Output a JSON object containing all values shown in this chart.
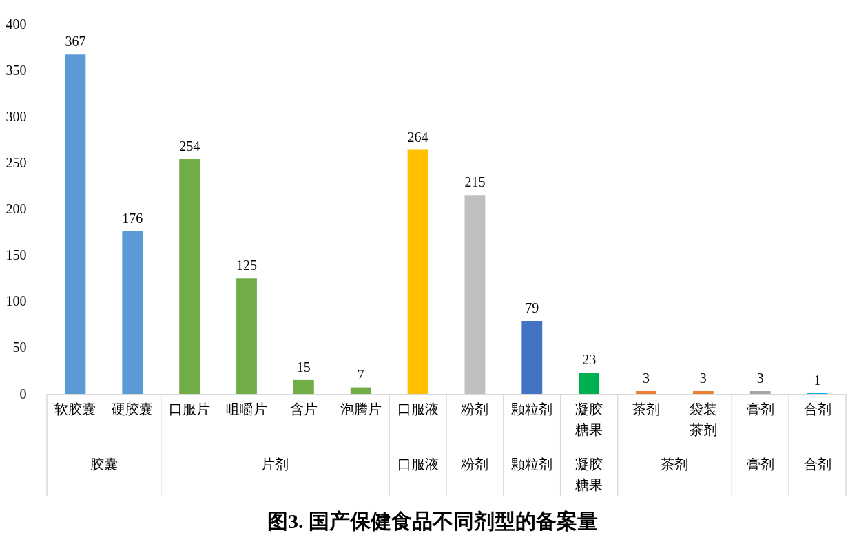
{
  "chart_data": {
    "type": "bar",
    "title": "图3. 国产保健食品不同剂型的备案量",
    "categories": [
      "软胶囊",
      "硬胶囊",
      "口服片",
      "咀嚼片",
      "含片",
      "泡腾片",
      "口服液",
      "粉剂",
      "颗粒剂",
      "凝胶糖果",
      "茶剂",
      "袋装茶剂",
      "膏剂",
      "合剂"
    ],
    "values": [
      367,
      176,
      254,
      125,
      15,
      7,
      264,
      215,
      79,
      23,
      3,
      3,
      3,
      1
    ],
    "colors": [
      "#5b9bd5",
      "#5b9bd5",
      "#70ad47",
      "#70ad47",
      "#70ad47",
      "#70ad47",
      "#ffc000",
      "#bfbfbf",
      "#4472c4",
      "#00b050",
      "#ed7d31",
      "#ed7d31",
      "#a5a5a5",
      "#00b0f0"
    ],
    "ylim": [
      0,
      400
    ],
    "yticks": [
      0,
      50,
      100,
      150,
      200,
      250,
      300,
      350,
      400
    ],
    "data_labels": true,
    "annotations": [
      "胶囊",
      "片剂",
      "口服液",
      "粉剂",
      "颗粒剂",
      "凝胶糖果",
      "茶剂",
      "膏剂",
      "合剂"
    ]
  }
}
